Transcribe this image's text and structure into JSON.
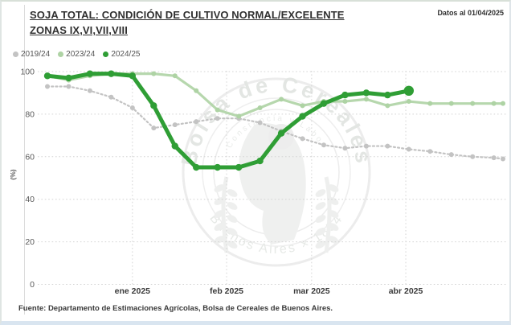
{
  "header": {
    "title_line1": "SOJA TOTAL: CONDICIÓN DE CULTIVO NORMAL/EXCELENTE",
    "title_line2": "ZONAS IX,VI,VII,VIII",
    "datos_al": "Datos al 01/04/2025"
  },
  "legend": {
    "items": [
      {
        "label": "2019/24",
        "color": "#c3c3c3"
      },
      {
        "label": "2023/24",
        "color": "#aed3a4"
      },
      {
        "label": "2024/25",
        "color": "#2f9e35"
      }
    ]
  },
  "watermark": {
    "outer_top": "Bolsa de Cereales",
    "outer_bottom": "Buenos Aires × 1854",
    "inner_text": "Constancia y Labor"
  },
  "footer": {
    "fuente": "Fuente: Departamento de Estimaciones Agrícolas, Bolsa de Cereales de Buenos Aires."
  },
  "chart_data": {
    "type": "line",
    "title": "SOJA TOTAL: CONDICIÓN DE CULTIVO NORMAL/EXCELENTE — ZONAS IX,VI,VII,VIII",
    "ylabel": "(%)",
    "ylim": [
      0,
      100
    ],
    "yticks": [
      0,
      20,
      40,
      60,
      80,
      100
    ],
    "grid": true,
    "legend_position": "top-left",
    "x_unit": "days from 04-Dec-2024, weekly observations",
    "month_ticks": [
      {
        "label": "ene 2025",
        "day": 28
      },
      {
        "label": "feb 2025",
        "day": 59
      },
      {
        "label": "mar 2025",
        "day": 87
      },
      {
        "label": "abr 2025",
        "day": 118
      }
    ],
    "series": [
      {
        "name": "2019/24",
        "style": "dotted",
        "color": "#c3c3c3",
        "days": [
          0,
          7,
          14,
          21,
          28,
          35,
          42,
          49,
          56,
          63,
          70,
          77,
          84,
          91,
          98,
          105,
          112,
          119,
          126,
          133,
          140,
          147,
          150
        ],
        "values": [
          93,
          93,
          91,
          88,
          83,
          73.5,
          75,
          76.5,
          78,
          78,
          76,
          72,
          68.5,
          65.5,
          64,
          65,
          65,
          63.5,
          62.5,
          61,
          60,
          59.5,
          59
        ]
      },
      {
        "name": "2023/24",
        "style": "solid",
        "color": "#aed3a4",
        "days": [
          0,
          7,
          14,
          21,
          28,
          35,
          42,
          49,
          56,
          63,
          70,
          77,
          84,
          91,
          98,
          105,
          112,
          119,
          126,
          133,
          140,
          147,
          150
        ],
        "values": [
          98,
          96,
          98,
          99,
          99,
          99,
          98,
          91,
          82,
          79,
          83,
          87,
          84,
          86,
          86,
          87,
          84,
          86,
          85,
          85,
          85,
          85,
          85
        ]
      },
      {
        "name": "2024/25",
        "style": "solid-bold",
        "color": "#2f9e35",
        "days": [
          0,
          7,
          14,
          21,
          28,
          35,
          42,
          49,
          56,
          63,
          70,
          77,
          84,
          91,
          98,
          105,
          112,
          119
        ],
        "values": [
          98,
          97,
          99,
          99,
          98,
          84,
          65,
          55,
          55,
          55,
          58,
          71,
          79,
          85,
          89,
          90,
          89,
          91
        ]
      }
    ]
  }
}
